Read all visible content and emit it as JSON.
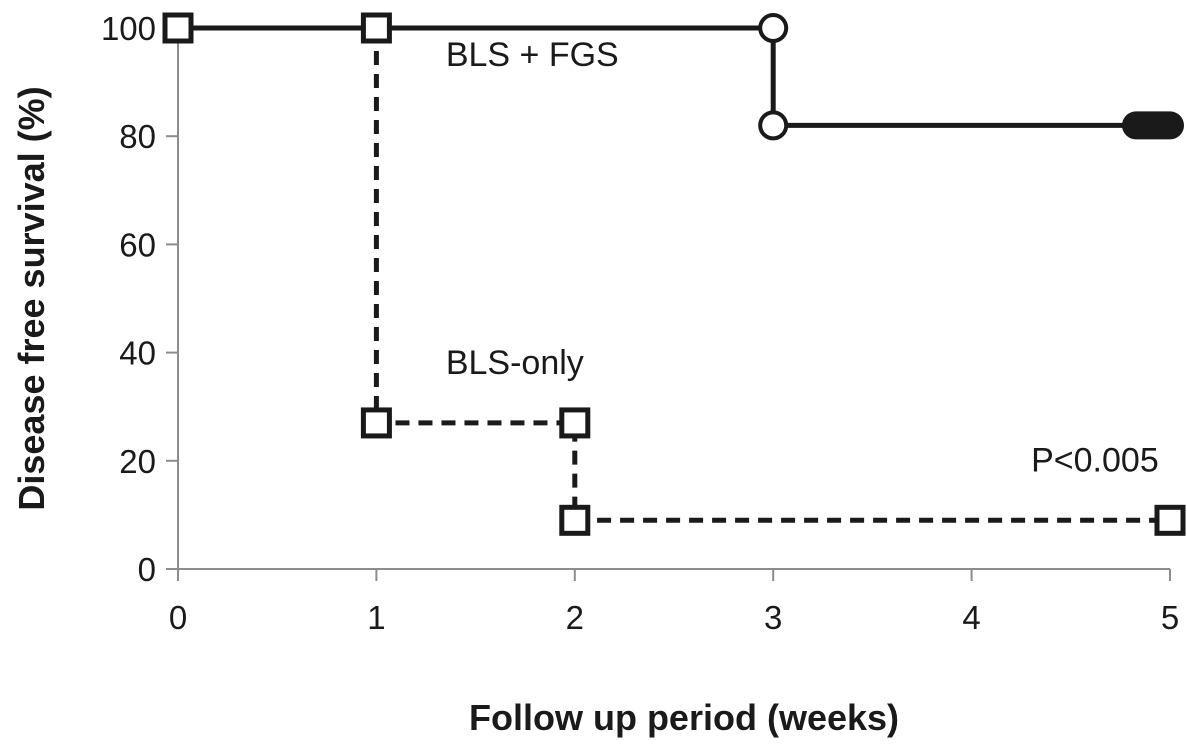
{
  "chart_data": {
    "type": "line",
    "subtype": "kaplan-meier-step",
    "title": "",
    "xlabel": "Follow up period (weeks)",
    "ylabel": "Disease free survival (%)",
    "xlim": [
      0,
      5
    ],
    "ylim": [
      0,
      100
    ],
    "x_ticks": [
      "0",
      "1",
      "2",
      "3",
      "4",
      "5"
    ],
    "y_ticks": [
      "0",
      "20",
      "40",
      "60",
      "80",
      "100"
    ],
    "grid": false,
    "legend": "none",
    "series": [
      {
        "name": "BLS + FGS",
        "line_style": "solid",
        "color": "#1a1a1a",
        "x": [
          0,
          3,
          3,
          5
        ],
        "y": [
          100,
          100,
          82,
          82
        ],
        "markers": [
          {
            "x": 0,
            "y": 100,
            "shape": "square"
          },
          {
            "x": 1,
            "y": 100,
            "shape": "square"
          },
          {
            "x": 3,
            "y": 100,
            "shape": "circle"
          },
          {
            "x": 3,
            "y": 82,
            "shape": "circle"
          },
          {
            "x": 5,
            "y": 82,
            "shape": "censor-bar"
          }
        ]
      },
      {
        "name": "BLS-only",
        "line_style": "dashed",
        "color": "#1a1a1a",
        "x": [
          1,
          1,
          2,
          2,
          5
        ],
        "y": [
          100,
          27,
          27,
          9,
          9
        ],
        "markers": [
          {
            "x": 1,
            "y": 27,
            "shape": "square"
          },
          {
            "x": 2,
            "y": 27,
            "shape": "square"
          },
          {
            "x": 2,
            "y": 9,
            "shape": "square"
          },
          {
            "x": 5,
            "y": 9,
            "shape": "square"
          }
        ]
      }
    ],
    "annotations": [
      {
        "text": "BLS + FGS",
        "x": 1.35,
        "y": 93
      },
      {
        "text": "BLS-only",
        "x": 1.35,
        "y": 36
      },
      {
        "text": "P<0.005",
        "x": 4.3,
        "y": 18
      }
    ]
  }
}
